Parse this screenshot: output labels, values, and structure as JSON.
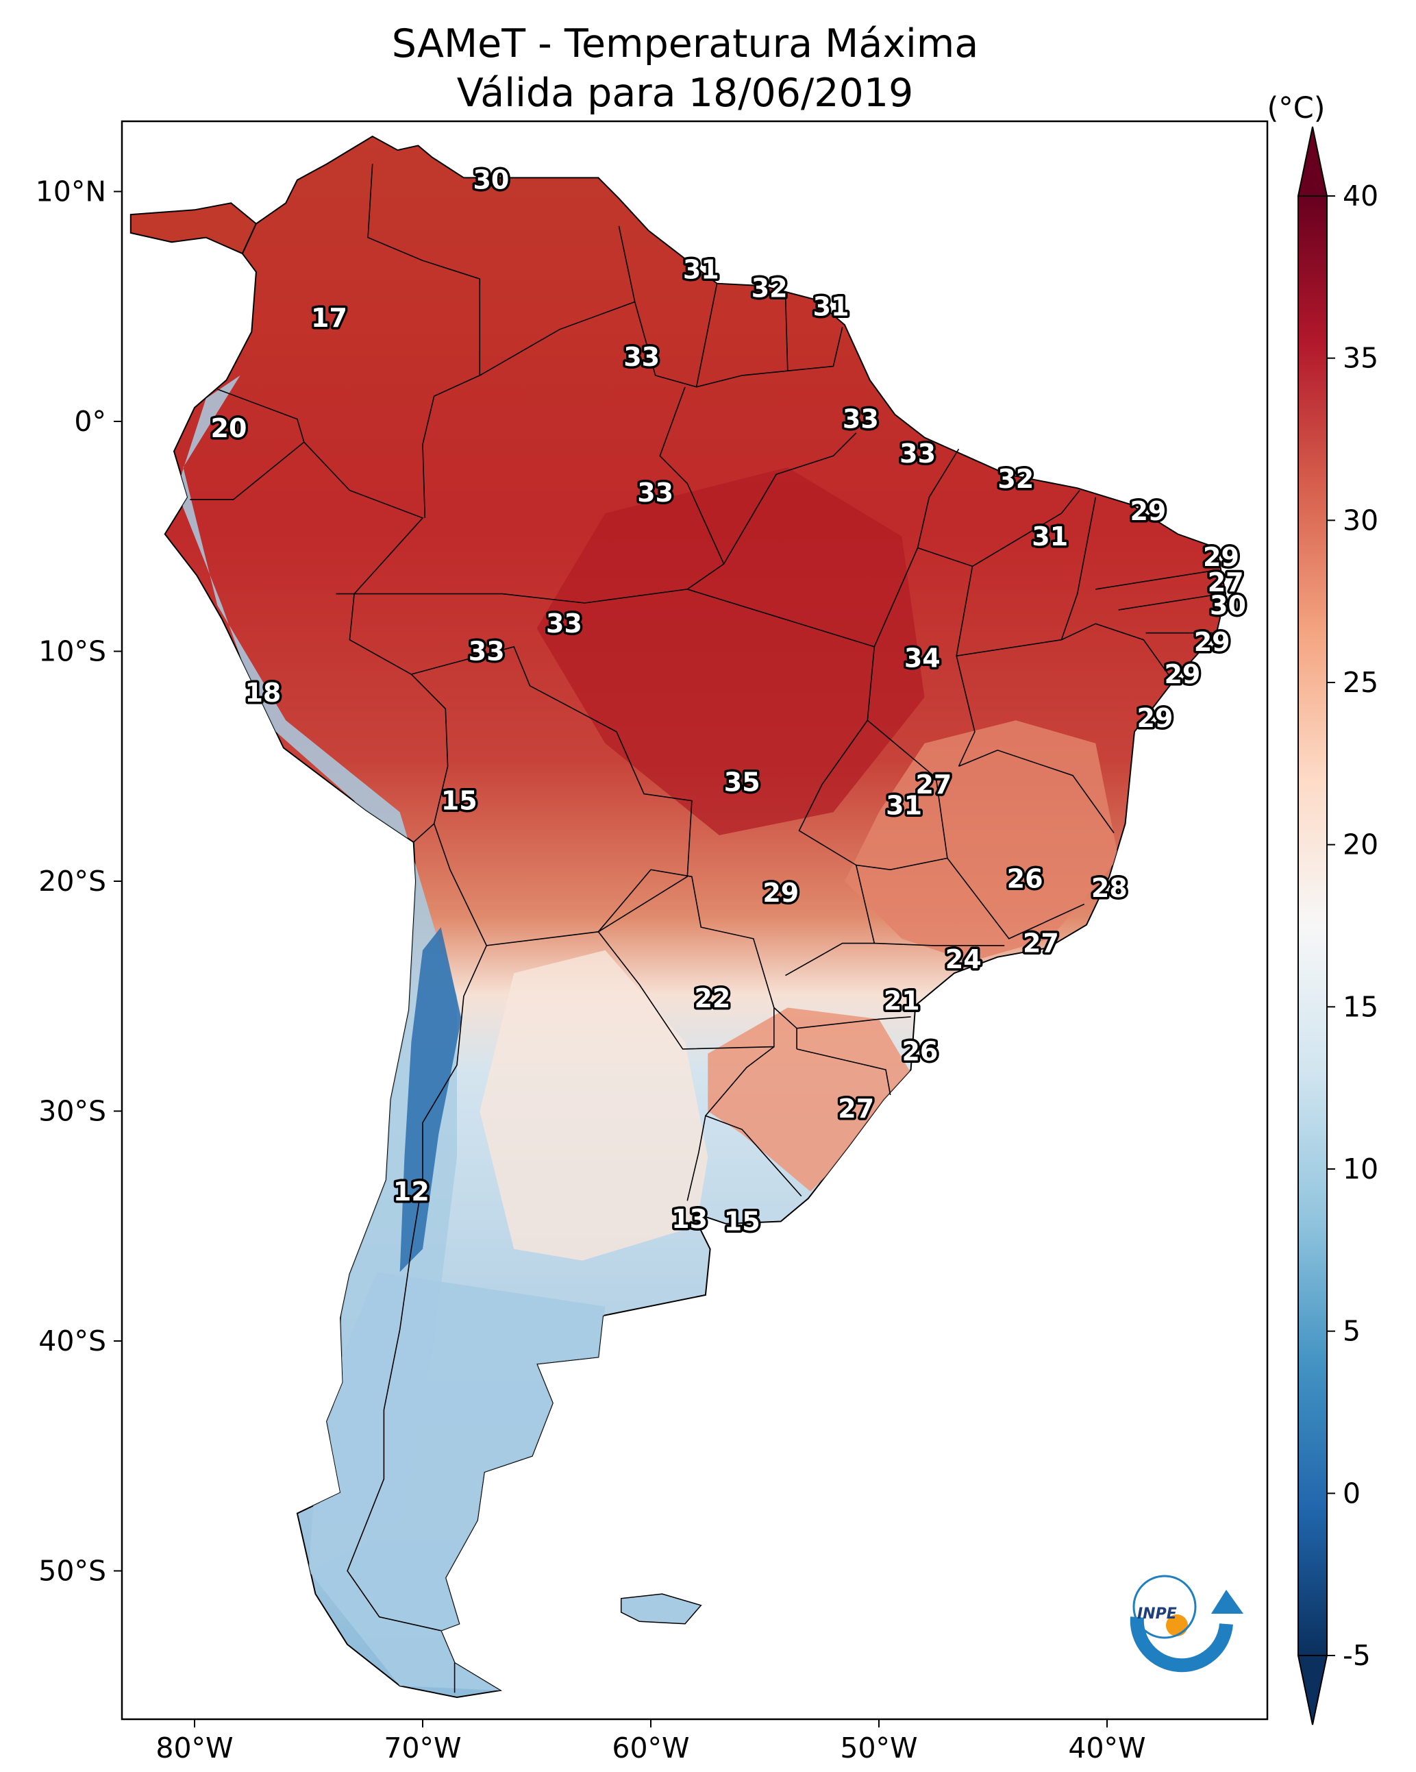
{
  "title": {
    "line1": "SAMeT - Temperatura Máxima",
    "line2": "Válida para 18/06/2019"
  },
  "axes": {
    "lon_ticks": [
      "80°W",
      "70°W",
      "60°W",
      "50°W",
      "40°W"
    ],
    "lat_ticks": [
      "10°N",
      "0°",
      "10°S",
      "20°S",
      "30°S",
      "40°S",
      "50°S"
    ]
  },
  "colorbar": {
    "unit": "(°C)",
    "ticks": [
      "40",
      "35",
      "30",
      "25",
      "20",
      "15",
      "10",
      "5",
      "0",
      "-5"
    ],
    "min": -5,
    "max": 40,
    "colors": [
      "#0b305e",
      "#2166ac",
      "#4393c3",
      "#92c5de",
      "#d1e5f0",
      "#f7f7f7",
      "#fddbc7",
      "#f4a582",
      "#d6604d",
      "#b2182b",
      "#67001f"
    ]
  },
  "logo": {
    "text": "INPE"
  },
  "labels": [
    {
      "t": "30",
      "lon": -67,
      "lat": 10.5
    },
    {
      "t": "31",
      "lon": -57.8,
      "lat": 6.6
    },
    {
      "t": "32",
      "lon": -54.8,
      "lat": 5.8
    },
    {
      "t": "31",
      "lon": -52.1,
      "lat": 5.0
    },
    {
      "t": "17",
      "lon": -74.1,
      "lat": 4.5
    },
    {
      "t": "33",
      "lon": -60.4,
      "lat": 2.8
    },
    {
      "t": "20",
      "lon": -78.5,
      "lat": -0.3
    },
    {
      "t": "33",
      "lon": -50.8,
      "lat": 0.1
    },
    {
      "t": "33",
      "lon": -48.3,
      "lat": -1.4
    },
    {
      "t": "32",
      "lon": -44.0,
      "lat": -2.5
    },
    {
      "t": "33",
      "lon": -59.8,
      "lat": -3.1
    },
    {
      "t": "29",
      "lon": -38.2,
      "lat": -3.9
    },
    {
      "t": "31",
      "lon": -42.5,
      "lat": -5.0
    },
    {
      "t": "29",
      "lon": -35.0,
      "lat": -5.9
    },
    {
      "t": "27",
      "lon": -34.8,
      "lat": -7.0
    },
    {
      "t": "30",
      "lon": -34.7,
      "lat": -8.0
    },
    {
      "t": "33",
      "lon": -63.8,
      "lat": -8.8
    },
    {
      "t": "29",
      "lon": -35.4,
      "lat": -9.6
    },
    {
      "t": "33",
      "lon": -67.2,
      "lat": -10.0
    },
    {
      "t": "34",
      "lon": -48.1,
      "lat": -10.3
    },
    {
      "t": "29",
      "lon": -36.7,
      "lat": -11.0
    },
    {
      "t": "18",
      "lon": -77.0,
      "lat": -11.8
    },
    {
      "t": "29",
      "lon": -37.9,
      "lat": -12.9
    },
    {
      "t": "35",
      "lon": -56.0,
      "lat": -15.7
    },
    {
      "t": "27",
      "lon": -47.6,
      "lat": -15.8
    },
    {
      "t": "15",
      "lon": -68.4,
      "lat": -16.5
    },
    {
      "t": "31",
      "lon": -48.9,
      "lat": -16.7
    },
    {
      "t": "26",
      "lon": -43.6,
      "lat": -19.9
    },
    {
      "t": "28",
      "lon": -39.9,
      "lat": -20.3
    },
    {
      "t": "29",
      "lon": -54.3,
      "lat": -20.5
    },
    {
      "t": "27",
      "lon": -42.9,
      "lat": -22.7
    },
    {
      "t": "24",
      "lon": -46.3,
      "lat": -23.4
    },
    {
      "t": "22",
      "lon": -57.3,
      "lat": -25.1
    },
    {
      "t": "21",
      "lon": -49.0,
      "lat": -25.2
    },
    {
      "t": "26",
      "lon": -48.2,
      "lat": -27.4
    },
    {
      "t": "27",
      "lon": -51.0,
      "lat": -29.9
    },
    {
      "t": "12",
      "lon": -70.5,
      "lat": -33.5
    },
    {
      "t": "13",
      "lon": -58.3,
      "lat": -34.7
    },
    {
      "t": "15",
      "lon": -56.0,
      "lat": -34.8
    }
  ]
}
